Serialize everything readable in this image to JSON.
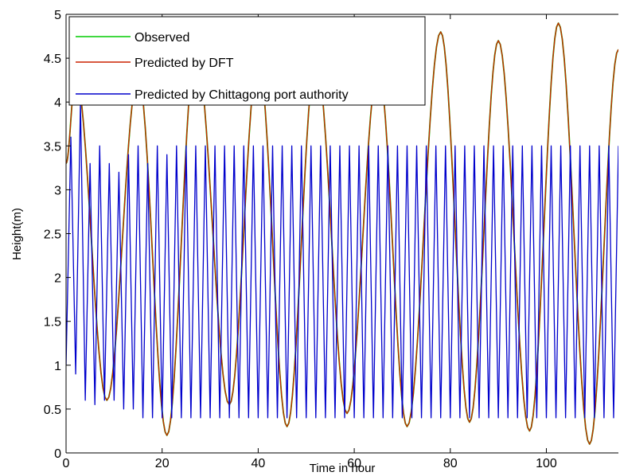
{
  "chart_data": {
    "type": "line",
    "title": "",
    "xlabel": "Time in hour",
    "ylabel": "Height(m)",
    "xlim": [
      0,
      115
    ],
    "ylim": [
      0,
      5
    ],
    "x_ticks": [
      0,
      20,
      40,
      60,
      80,
      100
    ],
    "y_ticks": [
      0,
      0.5,
      1,
      1.5,
      2,
      2.5,
      3,
      3.5,
      4,
      4.5,
      5
    ],
    "x_tick_labels": [
      "0",
      "20",
      "40",
      "60",
      "80",
      "100"
    ],
    "y_tick_labels": [
      "0",
      "0.5",
      "1",
      "1.5",
      "2",
      "2.5",
      "3",
      "3.5",
      "4",
      "4.5",
      "5"
    ],
    "grid": false,
    "legend_position": "top-left",
    "series": [
      {
        "name": "Observed",
        "color": "#00cc00",
        "x": [
          0,
          2,
          8.5,
          15,
          21,
          27,
          34,
          40,
          46,
          52,
          58.5,
          65,
          71,
          78,
          84,
          90,
          96.5,
          102.5,
          109,
          115
        ],
        "y": [
          3.3,
          4.3,
          0.6,
          4.3,
          0.2,
          4.6,
          0.55,
          4.5,
          0.3,
          4.5,
          0.45,
          4.4,
          0.3,
          4.8,
          0.35,
          4.7,
          0.25,
          4.9,
          0.1,
          4.6
        ]
      },
      {
        "name": "Predicted by DFT",
        "color": "#cc2200",
        "x": [
          0,
          2,
          8.5,
          15,
          21,
          27,
          34,
          40,
          46,
          52,
          58.5,
          65,
          71,
          78,
          84,
          90,
          96.5,
          102.5,
          109,
          115
        ],
        "y": [
          3.3,
          4.3,
          0.6,
          4.3,
          0.2,
          4.6,
          0.55,
          4.5,
          0.3,
          4.5,
          0.45,
          4.4,
          0.3,
          4.8,
          0.35,
          4.7,
          0.25,
          4.9,
          0.1,
          4.6
        ]
      },
      {
        "name": "Predicted by Chittagong port authority",
        "color": "#0000cc",
        "x": [
          0,
          1,
          2,
          3,
          4,
          5,
          6,
          7,
          8,
          9,
          10,
          11,
          12,
          13,
          14,
          15,
          16,
          17,
          18,
          19,
          20,
          21,
          22,
          23,
          24,
          25,
          26,
          27,
          28,
          29,
          30,
          31,
          32,
          33,
          34,
          35,
          36,
          37,
          38,
          39,
          40,
          41,
          42,
          43,
          44,
          45,
          46,
          47,
          48,
          49,
          50,
          51,
          52,
          53,
          54,
          55,
          56,
          57,
          58,
          59,
          60,
          61,
          62,
          63,
          64,
          65,
          66,
          67,
          68,
          69,
          70,
          71,
          72,
          73,
          74,
          75,
          76,
          77,
          78,
          79,
          80,
          81,
          82,
          83,
          84,
          85,
          86,
          87,
          88,
          89,
          90,
          91,
          92,
          93,
          94,
          95,
          96,
          97,
          98,
          99,
          100,
          101,
          102,
          103,
          104,
          105,
          106,
          107,
          108,
          109,
          110,
          111,
          112,
          113,
          114,
          115
        ],
        "y": [
          1.0,
          3.6,
          0.9,
          4.0,
          0.6,
          3.3,
          0.55,
          3.5,
          0.6,
          3.3,
          0.6,
          3.2,
          0.5,
          3.4,
          0.5,
          3.5,
          0.4,
          3.3,
          0.4,
          3.5,
          0.4,
          3.4,
          0.4,
          3.5,
          0.4,
          3.5,
          0.4,
          3.5,
          0.4,
          3.5,
          0.4,
          3.5,
          0.4,
          3.5,
          0.4,
          3.5,
          0.4,
          3.5,
          0.4,
          3.5,
          0.4,
          3.5,
          0.4,
          3.5,
          0.4,
          3.5,
          0.4,
          3.5,
          0.4,
          3.5,
          0.4,
          3.5,
          0.4,
          3.5,
          0.4,
          3.5,
          0.4,
          3.5,
          0.4,
          3.5,
          0.4,
          3.5,
          0.4,
          3.5,
          0.4,
          3.5,
          0.4,
          3.5,
          0.4,
          3.5,
          0.4,
          3.5,
          0.4,
          3.5,
          0.4,
          3.5,
          0.4,
          3.5,
          0.4,
          3.5,
          0.4,
          3.5,
          0.4,
          3.5,
          0.4,
          3.5,
          0.4,
          3.5,
          0.4,
          3.5,
          0.4,
          3.5,
          0.4,
          3.5,
          0.4,
          3.5,
          0.4,
          3.5,
          0.4,
          3.5,
          0.4,
          3.5,
          0.4,
          3.5,
          0.4,
          3.5,
          0.4,
          3.5,
          0.4,
          3.5,
          0.4,
          3.5,
          0.4,
          3.5,
          0.4,
          3.5
        ]
      }
    ]
  }
}
